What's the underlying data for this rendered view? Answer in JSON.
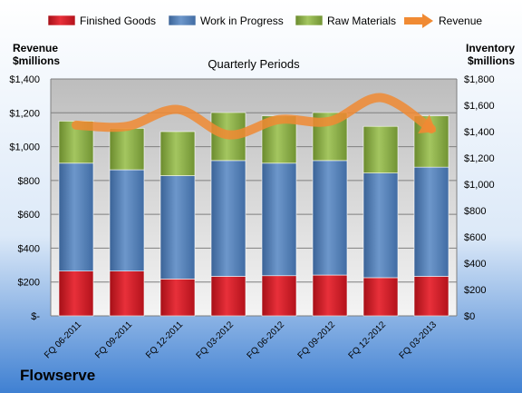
{
  "company": "Flowserve",
  "chart_data": {
    "type": "bar",
    "stacked": true,
    "subtitle": "Quarterly Periods",
    "categories": [
      "FQ 06-2011",
      "FQ 09-2011",
      "FQ 12-2011",
      "FQ 03-2012",
      "FQ 06-2012",
      "FQ 09-2012",
      "FQ 12-2012",
      "FQ 03-2013"
    ],
    "left_axis": {
      "title_line1": "Revenue",
      "title_line2": "$millions",
      "range": [
        0,
        1400
      ],
      "ticks": [
        0,
        200,
        400,
        600,
        800,
        1000,
        1200,
        1400
      ],
      "tick_labels": [
        "$-",
        "$200",
        "$400",
        "$600",
        "$800",
        "$1,000",
        "$1,200",
        "$1,400"
      ]
    },
    "right_axis": {
      "title_line1": "Inventory",
      "title_line2": "$millions",
      "range": [
        0,
        1800
      ],
      "ticks": [
        0,
        200,
        400,
        600,
        800,
        1000,
        1200,
        1400,
        1600,
        1800
      ],
      "tick_labels": [
        "$0",
        "$200",
        "$400",
        "$600",
        "$800",
        "$1,000",
        "$1,200",
        "$1,400",
        "$1,600",
        "$1,800"
      ]
    },
    "series": [
      {
        "name": "Finished Goods",
        "axis": "right",
        "color": "#e01e2a",
        "values": [
          340,
          340,
          280,
          300,
          305,
          310,
          290,
          300
        ]
      },
      {
        "name": "Work in Progress",
        "axis": "right",
        "color": "#4f81bd",
        "values": [
          820,
          770,
          785,
          880,
          855,
          870,
          795,
          830
        ]
      },
      {
        "name": "Raw Materials",
        "axis": "right",
        "color": "#8fb348",
        "values": [
          320,
          315,
          335,
          365,
          360,
          365,
          355,
          390
        ]
      }
    ],
    "line_series": {
      "name": "Revenue",
      "axis": "left",
      "color": "#f08a33",
      "values": [
        1127,
        1120,
        1220,
        1070,
        1160,
        1150,
        1290,
        1105
      ]
    },
    "legend_position": "top",
    "grid": true
  }
}
